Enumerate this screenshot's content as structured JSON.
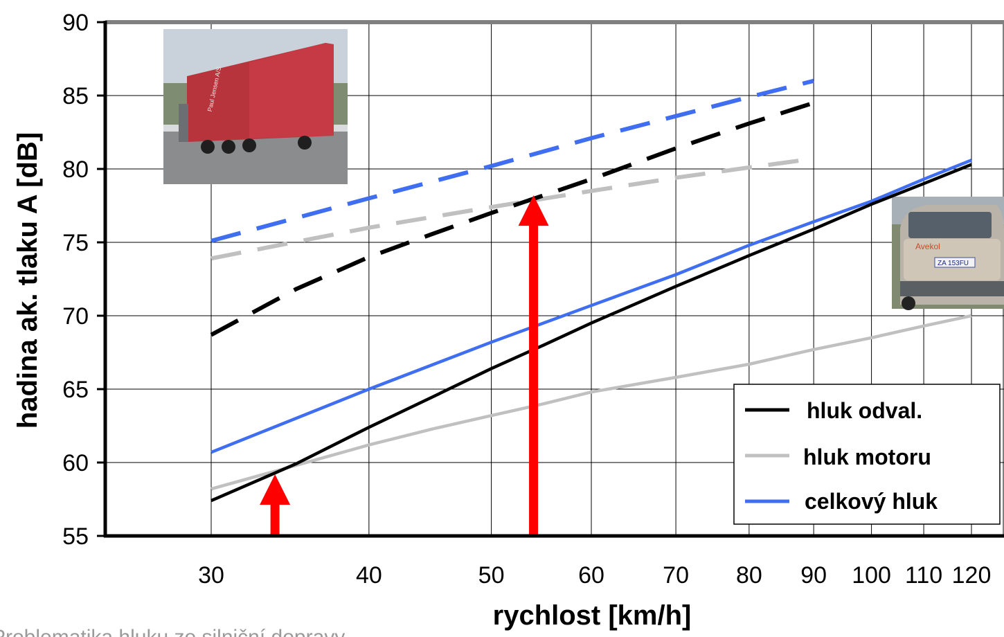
{
  "footer_text": "Problematika hluku ze silniční dopravy",
  "photos": {
    "truck": {
      "text_lines": [
        "Paul Jensen A/S"
      ]
    },
    "car": {
      "brand_text": "Avekol",
      "plate_text": "ZA 153FU"
    }
  },
  "chart_data": {
    "type": "line",
    "xlabel": "rychlost [km/h]",
    "ylabel": "hadina ak. tlaku A [dB]",
    "x_scale": "log",
    "xlim": [
      30,
      120
    ],
    "ylim": [
      55,
      90
    ],
    "x_ticks": [
      30,
      40,
      50,
      60,
      70,
      80,
      90,
      100,
      110,
      120
    ],
    "y_ticks": [
      55,
      60,
      65,
      70,
      75,
      80,
      85,
      90
    ],
    "grid": true,
    "legend_position": "bottom-right",
    "legend": [
      {
        "label": "hluk odval.",
        "color": "#000000"
      },
      {
        "label": "hluk motoru",
        "color": "#c0c0c0"
      },
      {
        "label": "celkový hluk",
        "color": "#3f6ef0"
      }
    ],
    "series": [
      {
        "name": "hluk odval.",
        "color": "#000000",
        "dash": false,
        "x": [
          30,
          35,
          40,
          45,
          50,
          55,
          60,
          70,
          80,
          90,
          100,
          110,
          120
        ],
        "y": [
          57.4,
          59.9,
          62.4,
          64.5,
          66.4,
          68.0,
          69.5,
          72.0,
          74.1,
          75.9,
          77.6,
          79.0,
          80.3
        ]
      },
      {
        "name": "hluk motoru",
        "color": "#c0c0c0",
        "dash": false,
        "x": [
          30,
          35,
          40,
          45,
          50,
          55,
          60,
          70,
          80,
          90,
          100,
          110,
          120
        ],
        "y": [
          58.2,
          59.8,
          61.2,
          62.3,
          63.2,
          64.0,
          64.8,
          65.8,
          66.7,
          67.7,
          68.5,
          69.3,
          70.0
        ]
      },
      {
        "name": "celkový hluk",
        "color": "#3f6ef0",
        "dash": false,
        "x": [
          30,
          40,
          50,
          60,
          70,
          80,
          90,
          100,
          110,
          120
        ],
        "y": [
          60.7,
          65.0,
          68.2,
          70.7,
          72.8,
          74.8,
          76.4,
          77.8,
          79.3,
          80.6
        ]
      },
      {
        "color": "#000000",
        "dash": true,
        "x": [
          30,
          35,
          40,
          45,
          50,
          55,
          60,
          70,
          80,
          90
        ],
        "y": [
          68.7,
          71.8,
          74.0,
          75.6,
          77.0,
          78.2,
          79.3,
          81.4,
          83.1,
          84.5
        ]
      },
      {
        "color": "#c0c0c0",
        "dash": true,
        "x": [
          30,
          40,
          50,
          60,
          70,
          80,
          90
        ],
        "y": [
          73.9,
          76.0,
          77.4,
          78.5,
          79.4,
          80.1,
          80.7
        ]
      },
      {
        "color": "#3f6ef0",
        "dash": true,
        "x": [
          30,
          40,
          50,
          60,
          70,
          80,
          90
        ],
        "y": [
          75.1,
          78.0,
          80.2,
          82.1,
          83.6,
          84.9,
          86.0
        ]
      }
    ],
    "annotations": [
      {
        "type": "arrow",
        "color": "#ff0000",
        "x": 33.7,
        "y_from": 55,
        "y_to": 59.2
      },
      {
        "type": "arrow",
        "color": "#ff0000",
        "x": 54,
        "y_from": 55,
        "y_to": 78.2
      }
    ]
  }
}
